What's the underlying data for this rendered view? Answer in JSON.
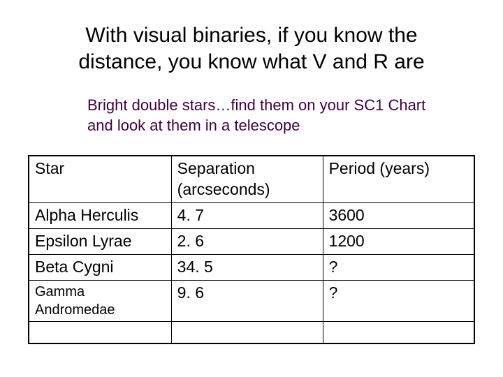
{
  "title": "With visual binaries, if you know the distance, you know what V and R are",
  "subtitle": "Bright double stars…find them on your SC1 Chart and look at them in a telescope",
  "table": {
    "columns": [
      "Star",
      "Separation (arcseconds)",
      "Period (years)"
    ],
    "rows": [
      {
        "star": "Alpha Herculis",
        "separation": "4. 7",
        "period": "3600",
        "small": false
      },
      {
        "star": "Epsilon Lyrae",
        "separation": "2. 6",
        "period": "1200",
        "small": false
      },
      {
        "star": "Beta Cygni",
        "separation": "34. 5",
        "period": "?",
        "small": false
      },
      {
        "star": "Gamma Andromedae",
        "separation": "9. 6",
        "period": "?",
        "small": true
      }
    ]
  },
  "colors": {
    "text": "#000000",
    "subtitle": "#400040",
    "border": "#000000",
    "background": "#ffffff"
  },
  "fontsizes": {
    "title": 30,
    "subtitle": 22,
    "cell": 23,
    "small_cell": 20
  }
}
